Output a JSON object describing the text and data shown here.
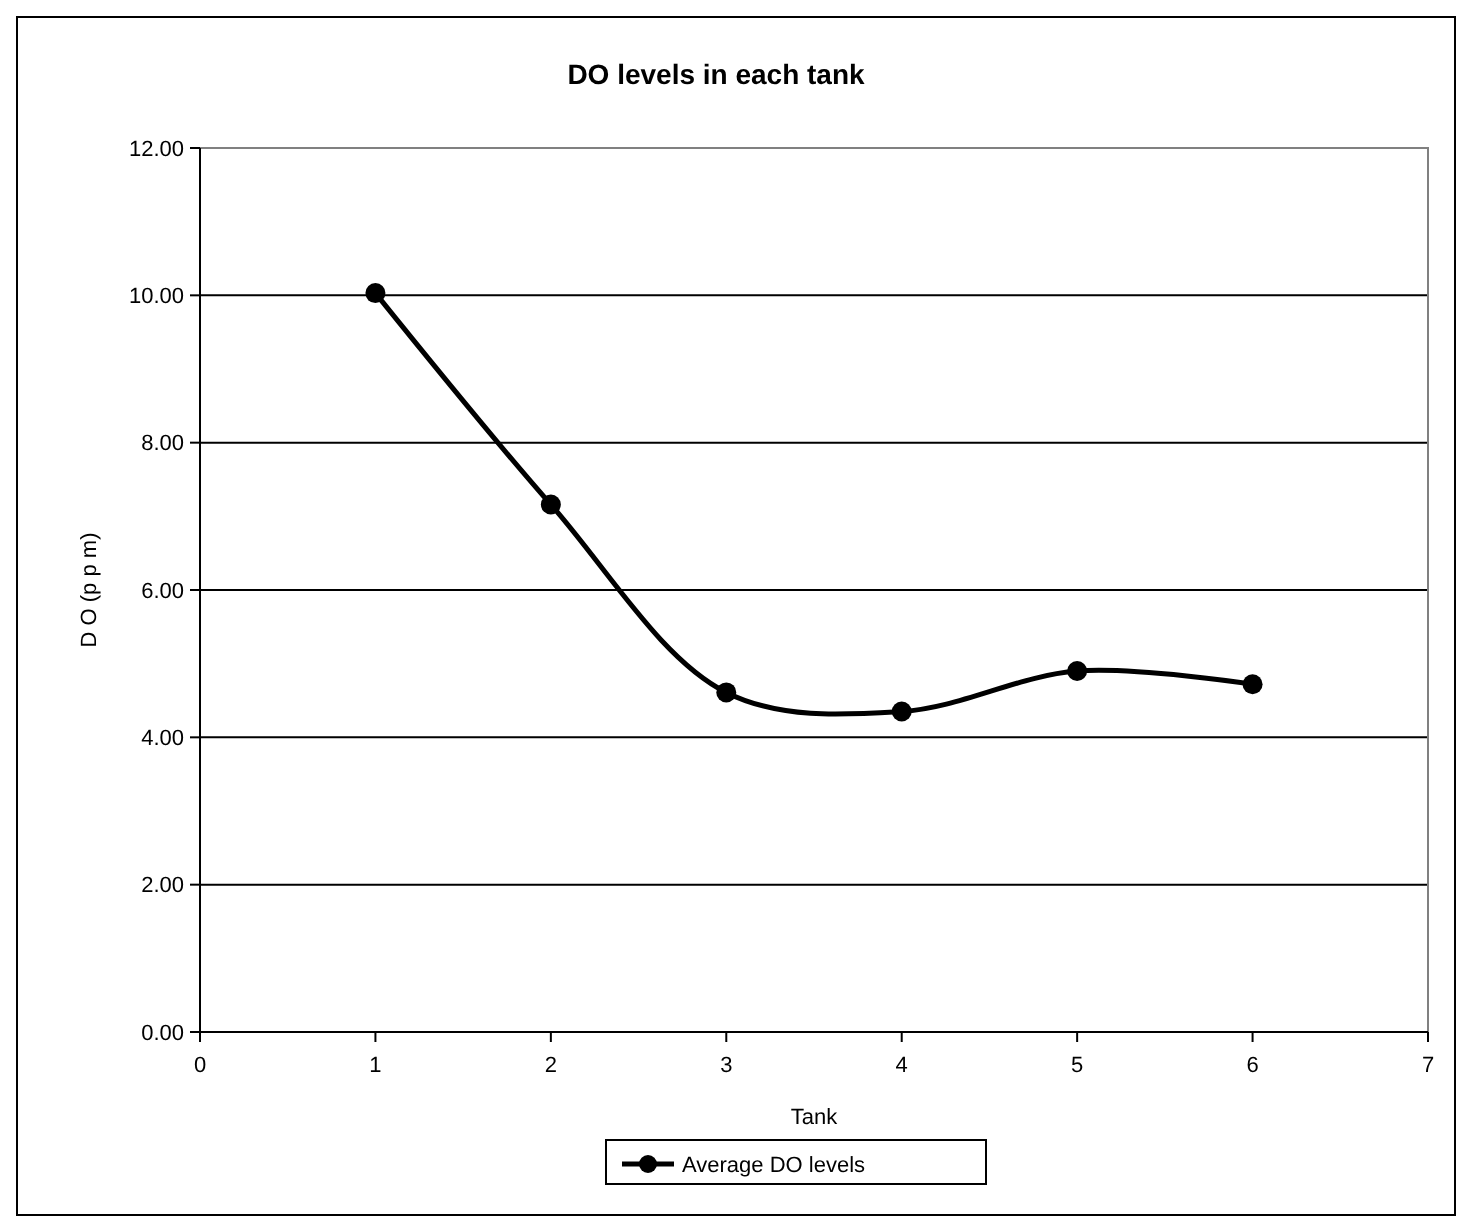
{
  "chart_data": {
    "type": "line",
    "title": "DO levels in each tank",
    "xlabel": "Tank",
    "ylabel": "D O (p p m)",
    "x": [
      1,
      2,
      3,
      4,
      5,
      6
    ],
    "series": [
      {
        "name": "Average DO levels",
        "color": "#000000",
        "values": [
          10.03,
          7.16,
          4.61,
          4.35,
          4.9,
          4.72
        ]
      }
    ],
    "xlim": [
      0,
      7
    ],
    "xticks": [
      0,
      1,
      2,
      3,
      4,
      5,
      6,
      7
    ],
    "ylim": [
      0,
      12
    ],
    "yticks": [
      {
        "value": 0,
        "label": "0.00"
      },
      {
        "value": 2,
        "label": "2.00"
      },
      {
        "value": 4,
        "label": "4.00"
      },
      {
        "value": 6,
        "label": "6.00"
      },
      {
        "value": 8,
        "label": "8.00"
      },
      {
        "value": 10,
        "label": "10.00"
      },
      {
        "value": 12,
        "label": "12.00"
      }
    ],
    "grid": "y",
    "legend": "bottom",
    "marker": "circle",
    "line_style": "solid"
  }
}
